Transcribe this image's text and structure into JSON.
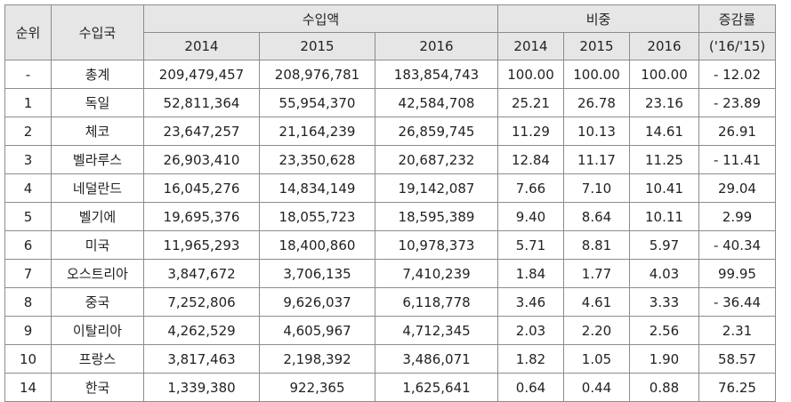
{
  "headers": {
    "rank": "순위",
    "country": "수입국",
    "amount": "수입액",
    "share": "비중",
    "change": "증감률",
    "change_sub": "('16/'15)",
    "years": [
      "2014",
      "2015",
      "2016"
    ]
  },
  "rows": [
    {
      "rank": "-",
      "country": "총계",
      "a2014": "209,479,457",
      "a2015": "208,976,781",
      "a2016": "183,854,743",
      "s2014": "100.00",
      "s2015": "100.00",
      "s2016": "100.00",
      "change": "- 12.02"
    },
    {
      "rank": "1",
      "country": "독일",
      "a2014": "52,811,364",
      "a2015": "55,954,370",
      "a2016": "42,584,708",
      "s2014": "25.21",
      "s2015": "26.78",
      "s2016": "23.16",
      "change": "- 23.89"
    },
    {
      "rank": "2",
      "country": "체코",
      "a2014": "23,647,257",
      "a2015": "21,164,239",
      "a2016": "26,859,745",
      "s2014": "11.29",
      "s2015": "10.13",
      "s2016": "14.61",
      "change": "26.91"
    },
    {
      "rank": "3",
      "country": "벨라루스",
      "a2014": "26,903,410",
      "a2015": "23,350,628",
      "a2016": "20,687,232",
      "s2014": "12.84",
      "s2015": "11.17",
      "s2016": "11.25",
      "change": "- 11.41"
    },
    {
      "rank": "4",
      "country": "네덜란드",
      "a2014": "16,045,276",
      "a2015": "14,834,149",
      "a2016": "19,142,087",
      "s2014": "7.66",
      "s2015": "7.10",
      "s2016": "10.41",
      "change": "29.04"
    },
    {
      "rank": "5",
      "country": "벨기에",
      "a2014": "19,695,376",
      "a2015": "18,055,723",
      "a2016": "18,595,389",
      "s2014": "9.40",
      "s2015": "8.64",
      "s2016": "10.11",
      "change": "2.99"
    },
    {
      "rank": "6",
      "country": "미국",
      "a2014": "11,965,293",
      "a2015": "18,400,860",
      "a2016": "10,978,373",
      "s2014": "5.71",
      "s2015": "8.81",
      "s2016": "5.97",
      "change": "- 40.34"
    },
    {
      "rank": "7",
      "country": "오스트리아",
      "a2014": "3,847,672",
      "a2015": "3,706,135",
      "a2016": "7,410,239",
      "s2014": "1.84",
      "s2015": "1.77",
      "s2016": "4.03",
      "change": "99.95"
    },
    {
      "rank": "8",
      "country": "중국",
      "a2014": "7,252,806",
      "a2015": "9,626,037",
      "a2016": "6,118,778",
      "s2014": "3.46",
      "s2015": "4.61",
      "s2016": "3.33",
      "change": "- 36.44"
    },
    {
      "rank": "9",
      "country": "이탈리아",
      "a2014": "4,262,529",
      "a2015": "4,605,967",
      "a2016": "4,712,345",
      "s2014": "2.03",
      "s2015": "2.20",
      "s2016": "2.56",
      "change": "2.31"
    },
    {
      "rank": "10",
      "country": "프랑스",
      "a2014": "3,817,463",
      "a2015": "2,198,392",
      "a2016": "3,486,071",
      "s2014": "1.82",
      "s2015": "1.05",
      "s2016": "1.90",
      "change": "58.57"
    },
    {
      "rank": "14",
      "country": "한국",
      "a2014": "1,339,380",
      "a2015": "922,365",
      "a2016": "1,625,641",
      "s2014": "0.64",
      "s2015": "0.44",
      "s2016": "0.88",
      "change": "76.25"
    }
  ]
}
